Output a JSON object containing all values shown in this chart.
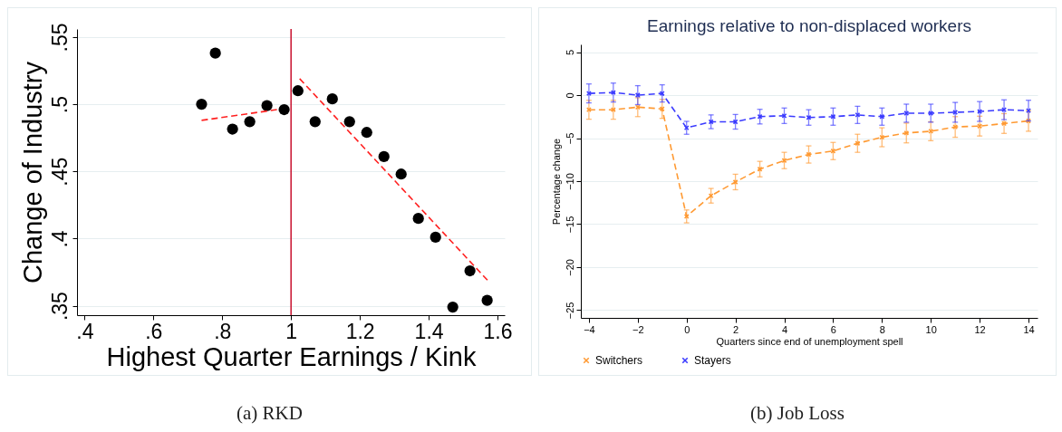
{
  "chart_data": [
    {
      "type": "scatter",
      "xlabel": "Highest Quarter Earnings / Kink",
      "ylabel": "Change of Industry",
      "xlim": [
        0.378,
        1.621
      ],
      "ylim": [
        0.343,
        0.556
      ],
      "xticks": [
        {
          "value": 0.4,
          "label": ".4"
        },
        {
          "value": 0.6,
          "label": ".6"
        },
        {
          "value": 0.8,
          "label": ".8"
        },
        1,
        1.2,
        1.4,
        1.6
      ],
      "yticks": [
        {
          "value": 0.35,
          "label": ".35"
        },
        {
          "value": 0.4,
          "label": ".4"
        },
        {
          "value": 0.45,
          "label": ".45"
        },
        {
          "value": 0.5,
          "label": ".5"
        },
        {
          "value": 0.55,
          "label": ".55"
        }
      ],
      "grid": "y",
      "series": [
        {
          "color": "#000000",
          "marker": "circle",
          "x": [
            0.74,
            0.78,
            0.83,
            0.88,
            0.93,
            0.98,
            1.02,
            1.07,
            1.12,
            1.17,
            1.22,
            1.27,
            1.32,
            1.37,
            1.42,
            1.47,
            1.52,
            1.57
          ],
          "values": [
            0.5,
            0.538,
            0.4815,
            0.487,
            0.499,
            0.496,
            0.51,
            0.487,
            0.504,
            0.487,
            0.479,
            0.461,
            0.448,
            0.415,
            0.401,
            0.349,
            0.376,
            0.354
          ]
        },
        {
          "type": "line",
          "color": "#ff2020",
          "line_style": "dashed",
          "x": [
            0.74,
            0.96
          ],
          "values": [
            0.488,
            0.496
          ]
        },
        {
          "type": "line",
          "color": "#ff2020",
          "line_style": "dashed",
          "x": [
            1.025,
            1.571
          ],
          "values": [
            0.519,
            0.369
          ]
        }
      ],
      "ref_lines": [
        {
          "axis": "x",
          "value": 1,
          "color": "#c8102e"
        }
      ],
      "annotations": [
        "(a) RKD"
      ]
    },
    {
      "type": "line",
      "title": "Earnings relative to non-displaced workers",
      "xlabel": "Quarters since end of unemployment spell",
      "ylabel": "Percentage change",
      "xlim": [
        -4.33,
        14.37
      ],
      "ylim": [
        -25.9,
        5.9
      ],
      "xticks": [
        -4,
        -2,
        0,
        2,
        4,
        6,
        8,
        10,
        12,
        14
      ],
      "yticks": [
        -25,
        -20,
        -15,
        -10,
        -5,
        0,
        5
      ],
      "grid": "y",
      "legend": "bottom",
      "x": [
        -4,
        -3,
        -2,
        -1,
        0,
        1,
        2,
        3,
        4,
        5,
        6,
        7,
        8,
        9,
        10,
        11,
        12,
        13,
        14
      ],
      "series": [
        {
          "name": "Switchers",
          "color": "#ff9a33",
          "marker": "cross",
          "line_style": "dashed",
          "values": [
            -1.7,
            -1.7,
            -1.4,
            -1.6,
            -14.1,
            -11.7,
            -10.1,
            -8.6,
            -7.6,
            -6.9,
            -6.5,
            -5.6,
            -4.9,
            -4.4,
            -4.2,
            -3.7,
            -3.6,
            -3.3,
            -3.0
          ],
          "errors": [
            1.1,
            1.1,
            1.1,
            1.1,
            0.75,
            0.85,
            0.9,
            0.9,
            0.95,
            1.0,
            1.0,
            1.05,
            1.1,
            1.15,
            1.1,
            1.2,
            1.15,
            1.15,
            1.2
          ]
        },
        {
          "name": "Stayers",
          "color": "#3b3bff",
          "marker": "cross",
          "line_style": "dashed",
          "values": [
            0.2,
            0.3,
            0.0,
            0.2,
            -3.8,
            -3.1,
            -3.1,
            -2.5,
            -2.4,
            -2.6,
            -2.5,
            -2.3,
            -2.5,
            -2.1,
            -2.1,
            -2.0,
            -1.9,
            -1.7,
            -1.8
          ],
          "errors": [
            1.1,
            1.1,
            1.1,
            1.0,
            0.75,
            0.8,
            0.85,
            0.85,
            0.9,
            0.9,
            1.0,
            1.0,
            1.0,
            1.05,
            1.05,
            1.15,
            1.15,
            1.15,
            1.2
          ]
        }
      ],
      "annotations": [
        "(b) Job Loss"
      ]
    }
  ]
}
